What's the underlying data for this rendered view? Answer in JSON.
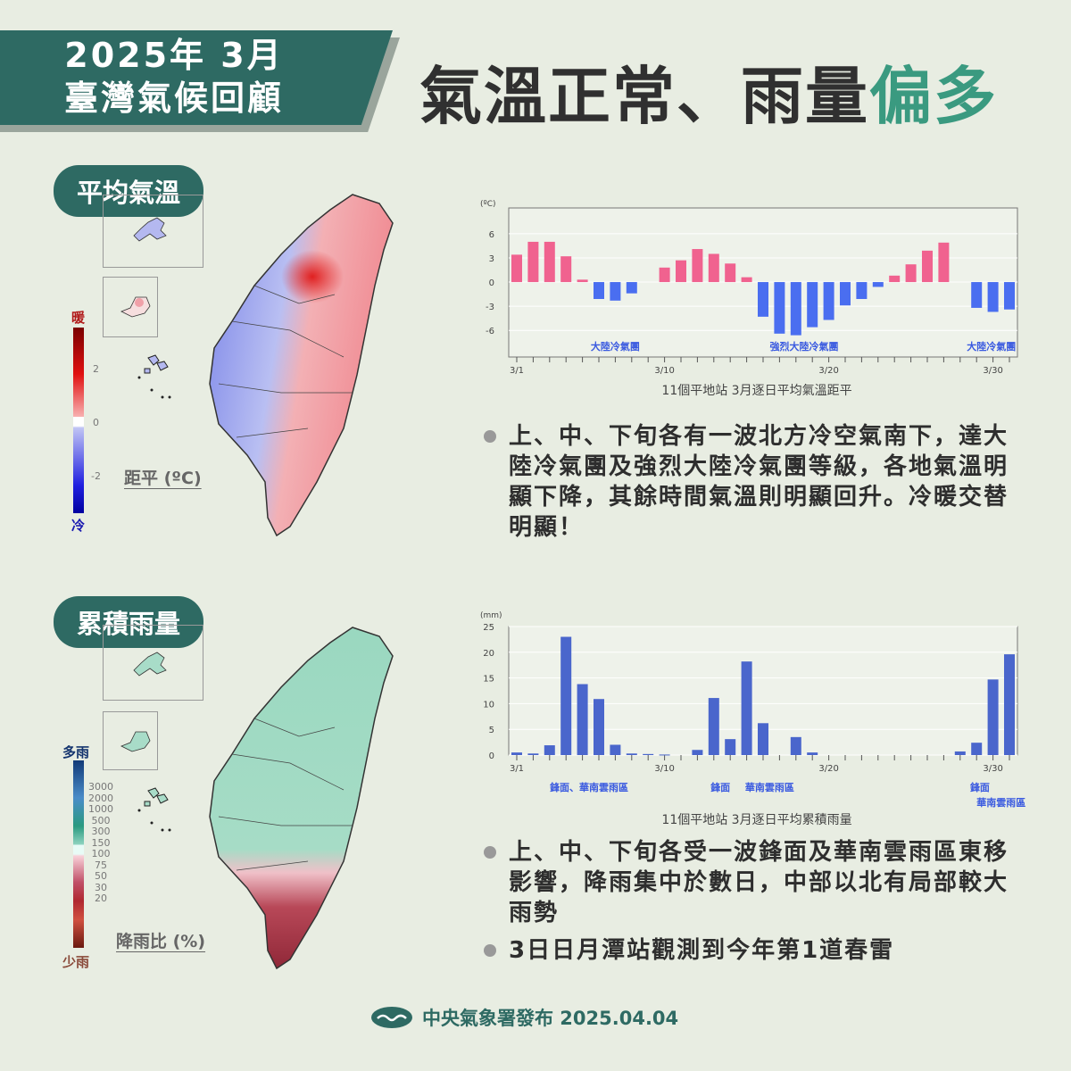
{
  "header": {
    "line1": "2025年 3月",
    "line2": "臺灣氣候回顧"
  },
  "title": {
    "main": "氣溫正常、雨量",
    "highlight": "偏多"
  },
  "temp_section": {
    "pill": "平均氣溫",
    "legend_top": "暖",
    "legend_bottom": "冷",
    "legend_ticks": [
      "2",
      "0",
      "-2"
    ],
    "unit": "距平 (ºC)"
  },
  "rain_section": {
    "pill": "累積雨量",
    "legend_top": "多雨",
    "legend_bottom": "少雨",
    "legend_ticks": [
      "3000",
      "2000",
      "1000",
      "500",
      "300",
      "150",
      "100",
      "75",
      "50",
      "30",
      "20"
    ],
    "unit": "降雨比 (%)"
  },
  "colors": {
    "warm": "#f0628f",
    "cold": "#4a6ef0",
    "rain": "#4a66cc",
    "teal": "#2e6a63",
    "accent": "#3a9a80"
  },
  "chart_data": [
    {
      "type": "bar",
      "title": "11個平地站 3月逐日平均氣溫距平",
      "ylabel": "(ºC)",
      "ylim": [
        -9.3,
        9.2
      ],
      "yticks": [
        "6",
        "3",
        "0",
        "-3",
        "-6"
      ],
      "ytick_values": [
        6,
        3,
        0,
        -3,
        -6
      ],
      "xtick_labels": [
        "3/1",
        "3/10",
        "3/20",
        "3/30"
      ],
      "xtick_days": [
        1,
        10,
        20,
        30
      ],
      "x": [
        1,
        2,
        3,
        4,
        5,
        6,
        7,
        8,
        9,
        10,
        11,
        12,
        13,
        14,
        15,
        16,
        17,
        18,
        19,
        20,
        21,
        22,
        23,
        24,
        25,
        26,
        27,
        28,
        29,
        30,
        31
      ],
      "values": [
        3.4,
        5.0,
        5.0,
        3.2,
        0.3,
        -2.1,
        -2.3,
        -1.4,
        0,
        1.8,
        2.7,
        4.1,
        3.5,
        2.3,
        0.6,
        -4.3,
        -6.4,
        -6.6,
        -5.6,
        -4.7,
        -2.9,
        -2.1,
        -0.6,
        0.8,
        2.2,
        3.9,
        4.9,
        0,
        -3.2,
        -3.7,
        -3.4
      ],
      "annotations": [
        {
          "text": "大陸冷氣團",
          "day": 7
        },
        {
          "text": "強烈大陸冷氣團",
          "day": 18.5
        },
        {
          "text": "大陸冷氣團",
          "day": 29.9
        }
      ]
    },
    {
      "type": "bar",
      "title": "11個平地站 3月逐日平均累積雨量",
      "ylabel": "(mm)",
      "ylim": [
        0,
        25
      ],
      "yticks": [
        "25",
        "20",
        "15",
        "10",
        "5",
        "0"
      ],
      "ytick_values": [
        25,
        20,
        15,
        10,
        5,
        0
      ],
      "xtick_labels": [
        "3/1",
        "3/10",
        "3/20",
        "3/30"
      ],
      "xtick_days": [
        1,
        10,
        20,
        30
      ],
      "x": [
        1,
        2,
        3,
        4,
        5,
        6,
        7,
        8,
        9,
        10,
        11,
        12,
        13,
        14,
        15,
        16,
        17,
        18,
        19,
        20,
        21,
        22,
        23,
        24,
        25,
        26,
        27,
        28,
        29,
        30,
        31
      ],
      "values": [
        0.5,
        0.3,
        1.9,
        23.0,
        13.8,
        10.9,
        2.0,
        0.3,
        0.2,
        0.1,
        0,
        1.0,
        11.1,
        3.1,
        18.2,
        6.2,
        0,
        3.5,
        0.5,
        0,
        0,
        0,
        0,
        0,
        0,
        0,
        0,
        0.7,
        2.4,
        14.7,
        19.6
      ],
      "annotations": [
        {
          "text": "鋒面、華南雲雨區",
          "day": 5.4
        },
        {
          "text": "鋒面",
          "day": 13.4
        },
        {
          "text": "華南雲雨區",
          "day": 16.4
        },
        {
          "text": "鋒面",
          "day": 29.2
        },
        {
          "text": "華南雲雨區",
          "day": 30.5
        }
      ]
    }
  ],
  "temp_bullets": [
    "上、中、下旬各有一波北方冷空氣南下，達大陸冷氣團及強烈大陸冷氣團等級，各地氣溫明顯下降，其餘時間氣溫則明顯回升。冷暖交替明顯！"
  ],
  "rain_bullets": [
    "上、中、下旬各受一波鋒面及華南雲雨區東移影響，降雨集中於數日，中部以北有局部較大雨勢",
    "3日日月潭站觀測到今年第1道春雷"
  ],
  "footer": {
    "text": "中央氣象署發布 2025.04.04"
  }
}
